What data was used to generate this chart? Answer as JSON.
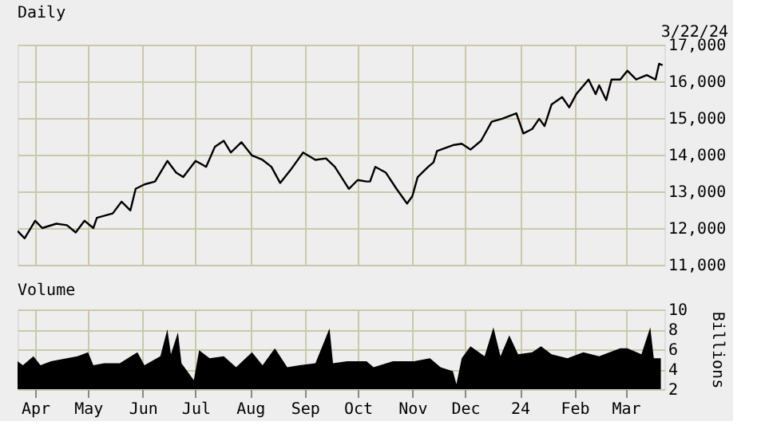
{
  "chart_data": [
    {
      "type": "line",
      "title": "Daily",
      "annotations": [
        "3/22/24"
      ],
      "grid": true,
      "tick_labels": "y",
      "marker": "none",
      "line_style": "solid",
      "xlim": [
        "2023-03-22",
        "2024-03-23"
      ],
      "ylim": [
        11000,
        17000
      ],
      "yticks": [
        {
          "value": 11000,
          "label": "11,000"
        },
        {
          "value": 12000,
          "label": "12,000"
        },
        {
          "value": 13000,
          "label": "13,000"
        },
        {
          "value": 14000,
          "label": "14,000"
        },
        {
          "value": 15000,
          "label": "15,000"
        },
        {
          "value": 16000,
          "label": "16,000"
        },
        {
          "value": 17000,
          "label": "17,000"
        }
      ],
      "series": [
        {
          "color": "#000000",
          "x": [
            "2023-03-22",
            "2023-03-26",
            "2023-04-01",
            "2023-04-05",
            "2023-04-13",
            "2023-04-19",
            "2023-04-24",
            "2023-04-29",
            "2023-05-04",
            "2023-05-06",
            "2023-05-15",
            "2023-05-20",
            "2023-05-25",
            "2023-05-28",
            "2023-06-02",
            "2023-06-08",
            "2023-06-15",
            "2023-06-20",
            "2023-06-24",
            "2023-07-01",
            "2023-07-07",
            "2023-07-12",
            "2023-07-17",
            "2023-07-21",
            "2023-07-27",
            "2023-08-02",
            "2023-08-08",
            "2023-08-13",
            "2023-08-18",
            "2023-08-24",
            "2023-08-31",
            "2023-09-07",
            "2023-09-13",
            "2023-09-18",
            "2023-09-26",
            "2023-10-01",
            "2023-10-06",
            "2023-10-08",
            "2023-10-11",
            "2023-10-17",
            "2023-10-23",
            "2023-10-29",
            "2023-11-01",
            "2023-11-04",
            "2023-11-10",
            "2023-11-13",
            "2023-11-15",
            "2023-11-24",
            "2023-11-29",
            "2023-12-04",
            "2023-12-10",
            "2023-12-16",
            "2023-12-22",
            "2023-12-30",
            "2024-01-03",
            "2024-01-08",
            "2024-01-12",
            "2024-01-15",
            "2024-01-19",
            "2024-01-25",
            "2024-01-29",
            "2024-02-02",
            "2024-02-09",
            "2024-02-13",
            "2024-02-15",
            "2024-02-19",
            "2024-02-22",
            "2024-02-27",
            "2024-03-02",
            "2024-03-07",
            "2024-03-13",
            "2024-03-18",
            "2024-03-20",
            "2024-03-22"
          ],
          "values": [
            11920,
            11720,
            12200,
            12000,
            12120,
            12080,
            11880,
            12200,
            12000,
            12280,
            12400,
            12720,
            12480,
            13070,
            13190,
            13270,
            13830,
            13510,
            13390,
            13830,
            13670,
            14220,
            14380,
            14060,
            14340,
            13980,
            13860,
            13670,
            13230,
            13590,
            14060,
            13860,
            13900,
            13670,
            13070,
            13310,
            13270,
            13270,
            13670,
            13510,
            13070,
            12670,
            12870,
            13390,
            13670,
            13790,
            14100,
            14260,
            14300,
            14140,
            14380,
            14900,
            14980,
            15130,
            14580,
            14700,
            14980,
            14780,
            15370,
            15570,
            15290,
            15650,
            16050,
            15650,
            15890,
            15490,
            16050,
            16050,
            16290,
            16050,
            16170,
            16050,
            16480,
            16440
          ]
        }
      ]
    },
    {
      "type": "area",
      "title": "Volume",
      "ylabel": "Billions",
      "grid": true,
      "line_style": "solid",
      "xlim": [
        "2023-03-22",
        "2024-03-23"
      ],
      "xticks": [
        {
          "value": "2023-04-01",
          "label": "Apr"
        },
        {
          "value": "2023-05-01",
          "label": "May"
        },
        {
          "value": "2023-06-01",
          "label": "Jun"
        },
        {
          "value": "2023-07-01",
          "label": "Jul"
        },
        {
          "value": "2023-08-01",
          "label": "Aug"
        },
        {
          "value": "2023-09-01",
          "label": "Sep"
        },
        {
          "value": "2023-10-01",
          "label": "Oct"
        },
        {
          "value": "2023-11-01",
          "label": "Nov"
        },
        {
          "value": "2023-12-01",
          "label": "Dec"
        },
        {
          "value": "2024-01-01",
          "label": "24"
        },
        {
          "value": "2024-02-01",
          "label": "Feb"
        },
        {
          "value": "2024-03-01",
          "label": "Mar"
        }
      ],
      "ylim": [
        2,
        10
      ],
      "yticks": [
        2,
        4,
        6,
        8,
        10
      ],
      "series": [
        {
          "color": "#000000",
          "x": [
            "2023-03-22",
            "2023-03-25",
            "2023-03-31",
            "2023-04-04",
            "2023-04-10",
            "2023-04-19",
            "2023-04-25",
            "2023-05-01",
            "2023-05-04",
            "2023-05-10",
            "2023-05-19",
            "2023-05-29",
            "2023-06-02",
            "2023-06-11",
            "2023-06-15",
            "2023-06-17",
            "2023-06-21",
            "2023-06-23",
            "2023-06-30",
            "2023-07-03",
            "2023-07-09",
            "2023-07-17",
            "2023-07-24",
            "2023-08-02",
            "2023-08-08",
            "2023-08-15",
            "2023-08-22",
            "2023-08-29",
            "2023-09-07",
            "2023-09-15",
            "2023-09-17",
            "2023-09-25",
            "2023-10-06",
            "2023-10-10",
            "2023-10-21",
            "2023-11-02",
            "2023-11-11",
            "2023-11-17",
            "2023-11-24",
            "2023-11-26",
            "2023-11-29",
            "2023-12-04",
            "2023-12-12",
            "2023-12-17",
            "2023-12-21",
            "2023-12-26",
            "2023-12-31",
            "2024-01-08",
            "2024-01-13",
            "2024-01-19",
            "2024-01-28",
            "2024-02-06",
            "2024-02-15",
            "2024-02-27",
            "2024-03-02",
            "2024-03-10",
            "2024-03-15",
            "2024-03-17",
            "2024-03-21"
          ],
          "values": [
            4.8,
            4.4,
            5.3,
            4.4,
            4.8,
            5.1,
            5.3,
            5.7,
            4.4,
            4.6,
            4.6,
            5.7,
            4.4,
            5.3,
            8.0,
            5.5,
            7.7,
            4.6,
            2.9,
            5.9,
            5.1,
            5.3,
            4.2,
            5.7,
            4.4,
            6.1,
            4.2,
            4.4,
            4.6,
            8.1,
            4.6,
            4.8,
            4.8,
            4.2,
            4.8,
            4.8,
            5.1,
            4.2,
            3.8,
            2.5,
            5.1,
            6.3,
            5.3,
            8.2,
            5.3,
            7.4,
            5.5,
            5.7,
            6.3,
            5.5,
            5.1,
            5.7,
            5.3,
            6.1,
            6.1,
            5.5,
            8.2,
            5.1,
            5.1
          ]
        }
      ]
    }
  ]
}
